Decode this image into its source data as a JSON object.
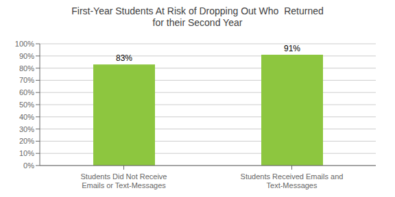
{
  "chart_data": {
    "type": "bar",
    "title": "First-Year Students At Risk of Dropping Out Who  Returned\nfor their Second Year",
    "categories": [
      "Students Did Not Receive Emails or Text-Messages",
      "Students Received Emails and Text-Messages"
    ],
    "values": [
      0.83,
      0.91
    ],
    "value_labels": [
      "83%",
      "91%"
    ],
    "data_labels": true,
    "color": "#8dc63f",
    "ylim": [
      0,
      1.0
    ],
    "yticks": [
      {
        "value": 0,
        "label": "0%"
      },
      {
        "value": 0.1,
        "label": "10%"
      },
      {
        "value": 0.2,
        "label": "20%"
      },
      {
        "value": 0.3,
        "label": "30%"
      },
      {
        "value": 0.4,
        "label": "40%"
      },
      {
        "value": 0.5,
        "label": "50%"
      },
      {
        "value": 0.6,
        "label": "60%"
      },
      {
        "value": 0.7,
        "label": "70%"
      },
      {
        "value": 0.8,
        "label": "80%"
      },
      {
        "value": 0.9,
        "label": "90%"
      },
      {
        "value": 1.0,
        "label": "100%"
      }
    ],
    "grid": true
  }
}
